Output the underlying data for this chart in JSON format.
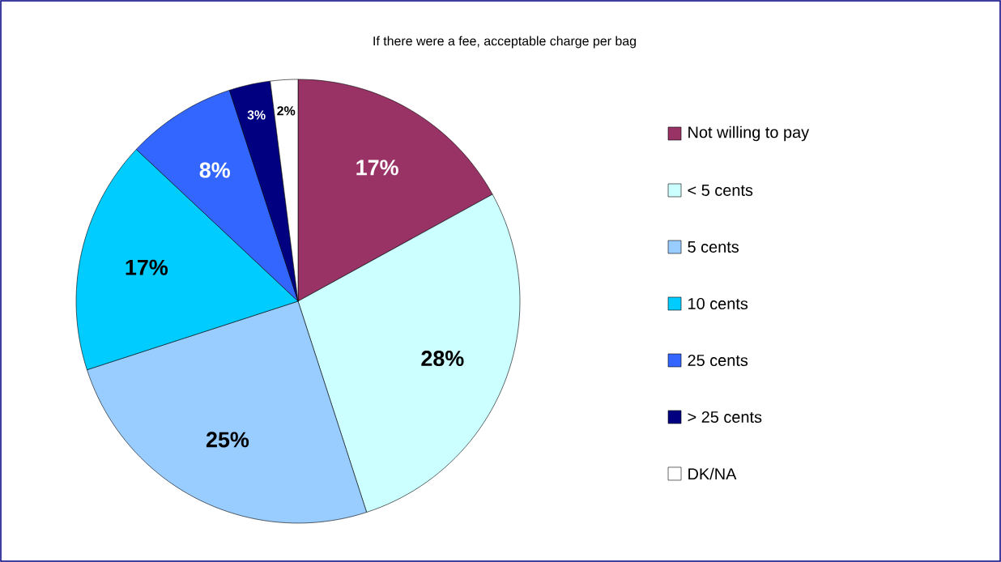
{
  "chart_data": {
    "type": "pie",
    "title": "If there were a fee, acceptable charge per bag",
    "categories": [
      "Not willing to pay",
      "< 5 cents",
      "5 cents",
      "10 cents",
      "25 cents",
      "> 25 cents",
      "DK/NA"
    ],
    "values": [
      17,
      28,
      25,
      17,
      8,
      3,
      2
    ],
    "colors": [
      "#993366",
      "#ccffff",
      "#99ccff",
      "#00ccff",
      "#3366ff",
      "#000080",
      "#ffffff"
    ],
    "value_labels": [
      "17%",
      "28%",
      "25%",
      "17%",
      "8%",
      "3%",
      "2%"
    ],
    "legend": "right"
  }
}
